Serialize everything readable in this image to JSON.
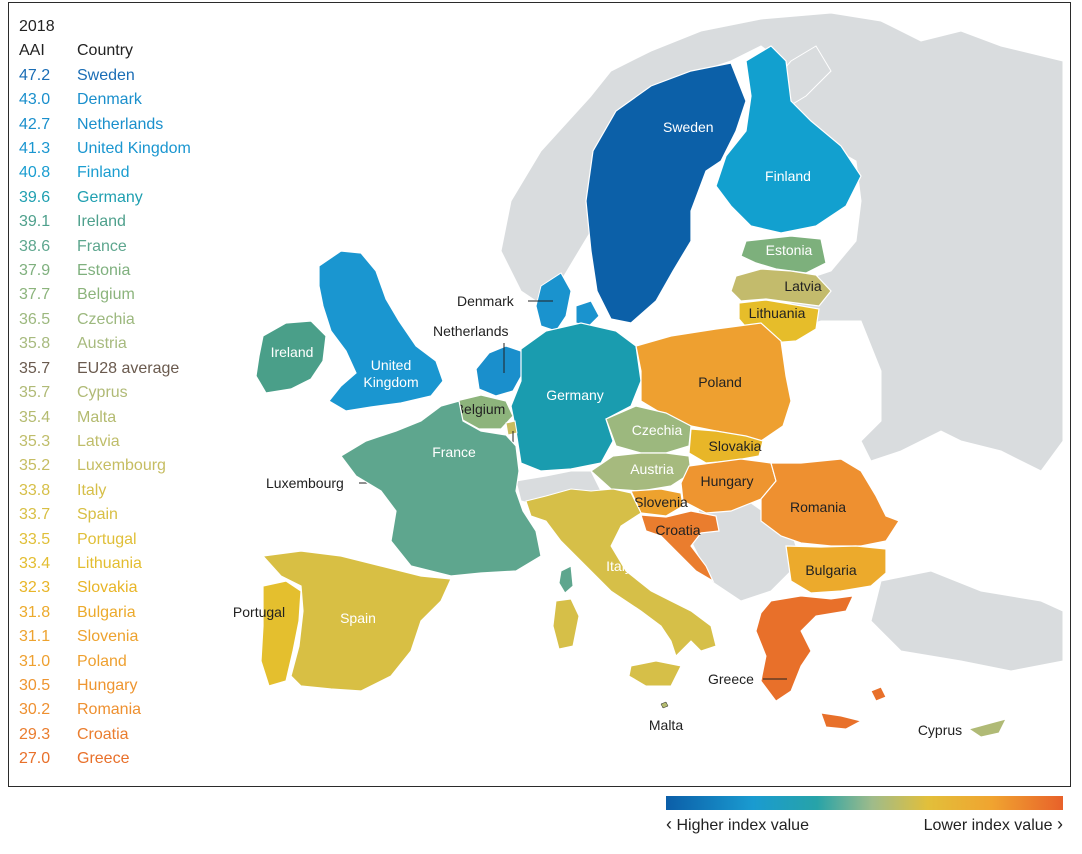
{
  "header": {
    "year": "2018",
    "col_value": "AAI",
    "col_country": "Country"
  },
  "ranking": [
    {
      "value": "47.2",
      "country": "Sweden",
      "color": "#1a6db5"
    },
    {
      "value": "43.0",
      "country": "Denmark",
      "color": "#1a8fcc"
    },
    {
      "value": "42.7",
      "country": "Netherlands",
      "color": "#1a8fcc"
    },
    {
      "value": "41.3",
      "country": "United Kingdom",
      "color": "#1a96d0"
    },
    {
      "value": "40.8",
      "country": "Finland",
      "color": "#1a9dd0"
    },
    {
      "value": "39.6",
      "country": "Germany",
      "color": "#1f9fb0"
    },
    {
      "value": "39.1",
      "country": "Ireland",
      "color": "#4ea08c"
    },
    {
      "value": "38.6",
      "country": "France",
      "color": "#5da68e"
    },
    {
      "value": "37.9",
      "country": "Estonia",
      "color": "#7fb07e"
    },
    {
      "value": "37.7",
      "country": "Belgium",
      "color": "#8cb47c"
    },
    {
      "value": "36.5",
      "country": "Czechia",
      "color": "#9cb87e"
    },
    {
      "value": "35.8",
      "country": "Austria",
      "color": "#a7ba7e"
    },
    {
      "value": "35.7",
      "country": "EU28 average",
      "color": "#6a5a4e"
    },
    {
      "value": "35.7",
      "country": "Cyprus",
      "color": "#b0ba76"
    },
    {
      "value": "35.4",
      "country": "Malta",
      "color": "#b4bb70"
    },
    {
      "value": "35.3",
      "country": "Latvia",
      "color": "#bfbd6a"
    },
    {
      "value": "35.2",
      "country": "Luxembourg",
      "color": "#c6bd62"
    },
    {
      "value": "33.8",
      "country": "Italy",
      "color": "#d6bf48"
    },
    {
      "value": "33.7",
      "country": "Spain",
      "color": "#d8bf44"
    },
    {
      "value": "33.5",
      "country": "Portugal",
      "color": "#e0bf38"
    },
    {
      "value": "33.4",
      "country": "Lithuania",
      "color": "#e3bd30"
    },
    {
      "value": "32.3",
      "country": "Slovakia",
      "color": "#e8b528"
    },
    {
      "value": "31.8",
      "country": "Bulgaria",
      "color": "#ecaa2c"
    },
    {
      "value": "31.1",
      "country": "Slovenia",
      "color": "#eda22e"
    },
    {
      "value": "31.0",
      "country": "Poland",
      "color": "#eea030"
    },
    {
      "value": "30.5",
      "country": "Hungary",
      "color": "#ee9530"
    },
    {
      "value": "30.2",
      "country": "Romania",
      "color": "#ee9030"
    },
    {
      "value": "29.3",
      "country": "Croatia",
      "color": "#ea7d2e"
    },
    {
      "value": "27.0",
      "country": "Greece",
      "color": "#e8702a"
    }
  ],
  "map": {
    "labels": {
      "sweden": "Sweden",
      "finland": "Finland",
      "estonia": "Estonia",
      "latvia": "Latvia",
      "lithuania": "Lithuania",
      "denmark": "Denmark",
      "netherlands": "Netherlands",
      "ireland": "Ireland",
      "uk_line1": "United",
      "uk_line2": "Kingdom",
      "belgium": "Belgium",
      "germany": "Germany",
      "poland": "Poland",
      "czechia": "Czechia",
      "slovakia": "Slovakia",
      "austria": "Austria",
      "hungary": "Hungary",
      "france": "France",
      "luxembourg": "Luxembourg",
      "slovenia": "Slovenia",
      "croatia": "Croatia",
      "romania": "Romania",
      "bulgaria": "Bulgaria",
      "italy": "Italy",
      "portugal": "Portugal",
      "spain": "Spain",
      "greece": "Greece",
      "malta": "Malta",
      "cyprus": "Cyprus"
    },
    "colors": {
      "non_eu": "#d9dcde",
      "sea": "#ffffff",
      "border": "#ffffff",
      "sweden": "#0c60a8",
      "finland": "#12a0cf",
      "estonia": "#7db07c",
      "latvia": "#c3bb6c",
      "lithuania": "#e6bd2a",
      "denmark": "#1a93ce",
      "netherlands": "#1a8fcc",
      "uk": "#1a96d0",
      "ireland": "#4a9f89",
      "belgium": "#8db47c",
      "luxembourg": "#c8bd60",
      "germany": "#1a9caf",
      "poland": "#eea030",
      "czechia": "#9cb87e",
      "slovakia": "#e8b628",
      "austria": "#a6ba7e",
      "hungary": "#ee9530",
      "france": "#5ea68e",
      "slovenia": "#eda22e",
      "croatia": "#ea7d2e",
      "romania": "#ee9030",
      "bulgaria": "#ecaa2c",
      "italy": "#d6bf48",
      "portugal": "#e4bf2e",
      "spain": "#d8bf44",
      "greece": "#e8702a",
      "malta": "#b4bb70",
      "cyprus": "#b0ba76"
    }
  },
  "legend": {
    "left": "Higher index value",
    "right": "Lower index value"
  }
}
